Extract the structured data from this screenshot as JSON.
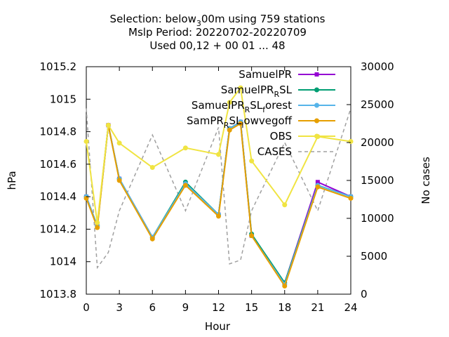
{
  "chart_data": {
    "type": "line",
    "title_lines": [
      "Selection: below 300m using   759 stations",
      "Mslp   Period: 20220702-20220709",
      "Used  00,12 + 00 01 ... 48"
    ],
    "xlabel": "Hour",
    "ylabel": "hPa",
    "y2label": "No cases",
    "xlim": [
      0,
      24
    ],
    "ylim": [
      1013.8,
      1015.2
    ],
    "y2lim": [
      0,
      30000
    ],
    "xticks": [
      0,
      3,
      6,
      9,
      12,
      15,
      18,
      21,
      24
    ],
    "yticks": [
      1013.8,
      1014,
      1014.2,
      1014.4,
      1014.6,
      1014.8,
      1015,
      1015.2
    ],
    "ytick_labels": [
      "1013.8",
      "1014",
      "1014.2",
      "1014.4",
      "1014.6",
      "1014.8",
      "1015",
      "1015.2"
    ],
    "y2ticks": [
      0,
      5000,
      10000,
      15000,
      20000,
      25000,
      30000
    ],
    "grid": false,
    "legend_position": "top-right",
    "x": [
      0,
      1,
      2,
      3,
      6,
      9,
      12,
      13,
      14,
      15,
      18,
      21,
      24
    ],
    "series": [
      {
        "name": "SamuelPR",
        "color": "#9400d3",
        "marker": "square",
        "axis": "y1",
        "values": [
          1014.4,
          1014.22,
          1014.84,
          1014.51,
          1014.15,
          1014.48,
          1014.29,
          1014.82,
          1014.86,
          1014.16,
          1013.87,
          1014.49,
          1014.4
        ]
      },
      {
        "name": "SamuelPR_R SL",
        "color": "#009e73",
        "marker": "circle",
        "axis": "y1",
        "values": [
          1014.4,
          1014.22,
          1014.84,
          1014.51,
          1014.15,
          1014.49,
          1014.29,
          1014.82,
          1014.86,
          1014.17,
          1013.87,
          1014.47,
          1014.4
        ]
      },
      {
        "name": "SamuelPR_R SL_forest",
        "color": "#56b4e9",
        "marker": "circle",
        "axis": "y1",
        "values": [
          1014.4,
          1014.22,
          1014.84,
          1014.51,
          1014.15,
          1014.48,
          1014.29,
          1014.82,
          1014.86,
          1014.16,
          1013.86,
          1014.47,
          1014.4
        ]
      },
      {
        "name": "SamPR_R SL_lowvegoff",
        "color": "#e69f00",
        "marker": "circle",
        "axis": "y1",
        "values": [
          1014.39,
          1014.21,
          1014.84,
          1014.5,
          1014.14,
          1014.47,
          1014.28,
          1014.81,
          1014.85,
          1014.16,
          1013.85,
          1014.46,
          1014.39
        ]
      },
      {
        "name": "OBS",
        "color": "#f0e442",
        "marker": "circle",
        "axis": "y1",
        "values": [
          1014.74,
          1014.24,
          1014.84,
          1014.73,
          1014.58,
          1014.7,
          1014.66,
          1014.98,
          1015.07,
          1014.62,
          1014.35,
          1014.77,
          1014.74
        ]
      },
      {
        "name": "CASES",
        "color": "#a0a0a0",
        "marker": "none",
        "dash": true,
        "axis": "y2",
        "x": [
          0,
          1,
          2,
          3,
          6,
          9,
          12,
          13,
          14,
          15,
          18,
          21,
          24
        ],
        "values": [
          24500,
          3500,
          5500,
          11000,
          21000,
          11000,
          22000,
          4000,
          4500,
          11000,
          20000,
          11000,
          24500
        ]
      }
    ],
    "legend": {
      "entries": [
        {
          "series": 0,
          "parts": [
            {
              "t": "SamuelPR"
            }
          ]
        },
        {
          "series": 1,
          "parts": [
            {
              "t": "SamuelPR"
            },
            {
              "t": "R",
              "sub": true
            },
            {
              "t": "SL"
            }
          ]
        },
        {
          "series": 2,
          "parts": [
            {
              "t": "SamuelPR"
            },
            {
              "t": "R",
              "sub": true
            },
            {
              "t": "SL"
            },
            {
              "t": "f",
              "sub": true
            },
            {
              "t": "orest"
            }
          ]
        },
        {
          "series": 3,
          "parts": [
            {
              "t": "SamPR"
            },
            {
              "t": "R",
              "sub": true
            },
            {
              "t": "SL"
            },
            {
              "t": "l",
              "sub": true
            },
            {
              "t": "owvegoff"
            }
          ]
        },
        {
          "series": 4,
          "parts": [
            {
              "t": "OBS"
            }
          ]
        },
        {
          "series": 5,
          "parts": [
            {
              "t": "CASES"
            }
          ]
        }
      ]
    }
  }
}
